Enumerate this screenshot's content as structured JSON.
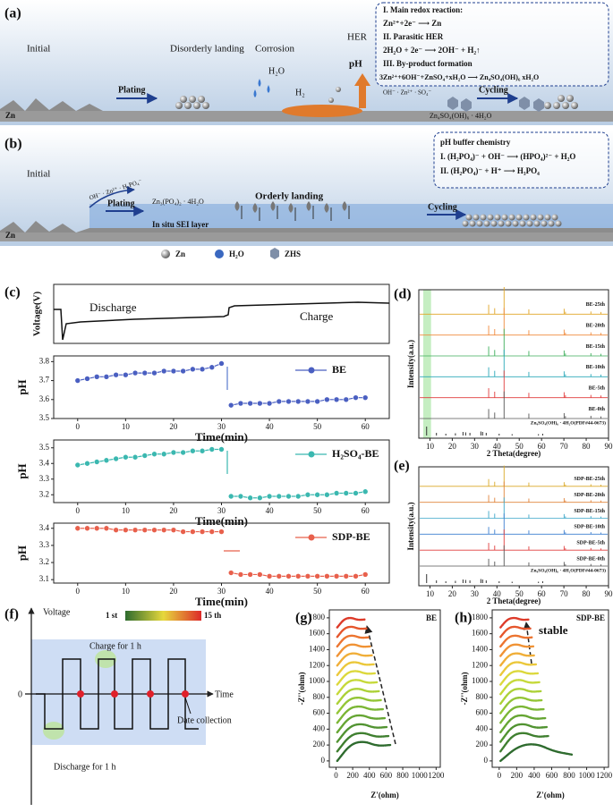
{
  "panel_a": {
    "label": "(a)",
    "stages": [
      "Initial",
      "Disorderly landing",
      "Corrosion",
      "HER"
    ],
    "species": [
      "H₂O",
      "H₂",
      "pH",
      "OH⁻ · Zn²⁺ · SO₄⁻"
    ],
    "arrows": [
      "Plating",
      "Cycling"
    ],
    "substrate": "Zn",
    "byproduct": "Zn₄SO₄(OH)₆ · 4H₂O",
    "box": [
      "I. Main redox reaction:",
      "Zn²⁺+2e⁻ ⟶ Zn",
      "II. Parasitic  HER",
      "2H₂O + 2e⁻ ⟶ 2OH⁻ + H₂↑",
      "III. By-product formation",
      "3Zn²⁺+6OH⁻+ZnSO₄+xH₂O ⟶ Zn₄SO₄(OH)₆ xH₂O"
    ]
  },
  "panel_b": {
    "label": "(b)",
    "stages": [
      "Initial",
      "Orderly landing"
    ],
    "arrows": [
      "Plating",
      "Cycling"
    ],
    "species": "OH⁻ · Zn²⁺ · H₂PO₄⁻",
    "layer_compound": "Zn₃(PO₄)₂ · 4H₂O",
    "layer": "In situ SEI layer",
    "substrate": "Zn",
    "box": [
      "pH buffer chemistry",
      "I. (H₂PO₄)⁻ + OH⁻ ⟶ (HPO₄)²⁻ + H₂O",
      "II. (H₂PO₄)⁻ + H⁺ ⟶ H₃PO₄"
    ],
    "legend": [
      "Zn",
      "H₂O",
      "ZHS"
    ]
  },
  "panel_c": {
    "label": "(c)",
    "voltage_label": "Voltage(V)",
    "phases": [
      "Discharge",
      "Charge"
    ]
  },
  "chart_data": [
    {
      "type": "line",
      "xlabel": "Time(min)",
      "ylabel": "pH",
      "x": [
        0,
        2,
        4,
        6,
        8,
        10,
        12,
        14,
        16,
        18,
        20,
        22,
        24,
        26,
        28,
        30,
        31,
        32,
        34,
        36,
        38,
        40,
        42,
        44,
        46,
        48,
        50,
        52,
        54,
        56,
        58,
        60
      ],
      "xlim": [
        -5,
        65
      ],
      "xticks": [
        0,
        10,
        20,
        30,
        40,
        50,
        60
      ],
      "ylim": [
        3.5,
        3.83
      ],
      "yticks": [
        3.5,
        3.6,
        3.7,
        3.8
      ],
      "series": [
        {
          "name": "BE",
          "color": "#4a5fc1",
          "values": [
            3.7,
            3.71,
            3.72,
            3.72,
            3.73,
            3.73,
            3.74,
            3.74,
            3.74,
            3.75,
            3.75,
            3.75,
            3.76,
            3.76,
            3.77,
            3.79,
            null,
            3.57,
            3.58,
            3.58,
            3.58,
            3.58,
            3.59,
            3.59,
            3.59,
            3.59,
            3.59,
            3.6,
            3.6,
            3.6,
            3.61,
            3.61
          ]
        }
      ]
    },
    {
      "type": "line",
      "xlabel": "Time(min)",
      "ylabel": "pH",
      "x": [
        0,
        2,
        4,
        6,
        8,
        10,
        12,
        14,
        16,
        18,
        20,
        22,
        24,
        26,
        28,
        30,
        31,
        32,
        34,
        36,
        38,
        40,
        42,
        44,
        46,
        48,
        50,
        52,
        54,
        56,
        58,
        60
      ],
      "xlim": [
        -5,
        65
      ],
      "xticks": [
        0,
        10,
        20,
        30,
        40,
        50,
        60
      ],
      "ylim": [
        3.15,
        3.55
      ],
      "yticks": [
        3.2,
        3.3,
        3.4,
        3.5
      ],
      "series": [
        {
          "name": "H₂SO₄-BE",
          "color": "#3bb8b0",
          "values": [
            3.39,
            3.4,
            3.41,
            3.42,
            3.43,
            3.44,
            3.44,
            3.45,
            3.46,
            3.46,
            3.47,
            3.47,
            3.48,
            3.48,
            3.49,
            3.49,
            null,
            3.19,
            3.19,
            3.18,
            3.18,
            3.19,
            3.19,
            3.19,
            3.19,
            3.2,
            3.2,
            3.2,
            3.21,
            3.21,
            3.21,
            3.22
          ]
        }
      ]
    },
    {
      "type": "line",
      "xlabel": "Time(min)",
      "ylabel": "pH",
      "x": [
        0,
        2,
        4,
        6,
        8,
        10,
        12,
        14,
        16,
        18,
        20,
        22,
        24,
        26,
        28,
        30,
        31,
        32,
        34,
        36,
        38,
        40,
        42,
        44,
        46,
        48,
        50,
        52,
        54,
        56,
        58,
        60
      ],
      "xlim": [
        -5,
        65
      ],
      "xticks": [
        0,
        10,
        20,
        30,
        40,
        50,
        60
      ],
      "ylim": [
        3.08,
        3.43
      ],
      "yticks": [
        3.1,
        3.2,
        3.3,
        3.4
      ],
      "series": [
        {
          "name": "SDP-BE",
          "color": "#e8604c",
          "values": [
            3.4,
            3.4,
            3.4,
            3.4,
            3.39,
            3.39,
            3.39,
            3.39,
            3.39,
            3.39,
            3.39,
            3.38,
            3.38,
            3.38,
            3.38,
            3.38,
            null,
            3.14,
            3.13,
            3.13,
            3.13,
            3.12,
            3.12,
            3.12,
            3.12,
            3.12,
            3.12,
            3.12,
            3.12,
            3.12,
            3.12,
            3.13
          ]
        }
      ]
    },
    {
      "type": "xrd",
      "panel": "(d)",
      "xlabel": "2 Theta(degree)",
      "ylabel": "Intensity(a.u.)",
      "xlim": [
        5,
        90
      ],
      "xticks": [
        10,
        20,
        30,
        40,
        50,
        60,
        70,
        80,
        90
      ],
      "highlight": [
        7,
        10.5
      ],
      "peaks": [
        36.3,
        39.0,
        43.2,
        54.3,
        70.1,
        70.7,
        82.1,
        86.6
      ],
      "peak_heights": [
        35,
        22,
        100,
        18,
        20,
        9,
        10,
        8
      ],
      "series": [
        {
          "name": "BE-25th",
          "color": "#e0a526"
        },
        {
          "name": "BE-20th",
          "color": "#f08a3c"
        },
        {
          "name": "BE-15th",
          "color": "#3cae5a"
        },
        {
          "name": "BE-10th",
          "color": "#2aa7b8"
        },
        {
          "name": "BE-5th",
          "color": "#e03c3c"
        },
        {
          "name": "BE-0th",
          "color": "#555555"
        }
      ],
      "reference": {
        "name": "Zn₄SO₄(OH)₆ · 4H₂O(PDF#44-0673)",
        "positions": [
          8.5,
          12.9,
          17.1,
          21.4,
          24.8,
          26.0,
          27.9,
          32.8,
          33.6,
          35.2,
          41.0,
          46.8,
          58.6,
          60.5
        ],
        "heights": [
          100,
          30,
          20,
          25,
          40,
          35,
          30,
          45,
          40,
          30,
          20,
          15,
          15,
          20
        ]
      }
    },
    {
      "type": "xrd",
      "panel": "(e)",
      "xlabel": "2 Theta(degree)",
      "ylabel": "Intensity(a.u.)",
      "xlim": [
        5,
        90
      ],
      "xticks": [
        10,
        20,
        30,
        40,
        50,
        60,
        70,
        80,
        90
      ],
      "peaks": [
        36.3,
        39.0,
        43.2,
        54.3,
        70.1,
        70.7,
        82.1,
        86.6
      ],
      "peak_heights": [
        35,
        22,
        100,
        18,
        20,
        9,
        10,
        8
      ],
      "series": [
        {
          "name": "SDP-BE-25th",
          "color": "#d9a826"
        },
        {
          "name": "SDP-BE-20th",
          "color": "#e0833a"
        },
        {
          "name": "SDP-BE-15th",
          "color": "#3aa6c8"
        },
        {
          "name": "SDP-BE-10th",
          "color": "#3c7fd0"
        },
        {
          "name": "SDP-BE-5th",
          "color": "#e03c3c"
        },
        {
          "name": "SDP-BE-0th",
          "color": "#555555"
        }
      ],
      "reference": {
        "name": "Zn₄SO₄(OH)₆ · 4H₂O(PDF#44-0673)",
        "positions": [
          8.5,
          12.9,
          17.1,
          21.4,
          24.8,
          26.0,
          27.9,
          32.8,
          33.6,
          35.2,
          41.0,
          46.8,
          58.6,
          60.5
        ],
        "heights": [
          100,
          30,
          20,
          25,
          40,
          35,
          30,
          45,
          40,
          30,
          20,
          15,
          15,
          20
        ]
      }
    },
    {
      "type": "nyquist",
      "panel": "(g)",
      "xlabel": "Z'(ohm)",
      "ylabel": "-Z''(ohm)",
      "xlim": [
        -80,
        1250
      ],
      "ylim": [
        -80,
        1900
      ],
      "xticks": [
        0,
        200,
        400,
        600,
        800,
        1000,
        1200
      ],
      "yticks": [
        0,
        200,
        400,
        600,
        800,
        1000,
        1200,
        1400,
        1600,
        1800
      ],
      "annotations": [
        "BE"
      ],
      "series": [
        {
          "color": "#2e6b2e",
          "x": [
            15,
            174,
            333,
            491,
            650
          ],
          "values": [
            0,
            212,
            250,
            188,
            200
          ]
        },
        {
          "color": "#3f7f2f",
          "x": [
            15,
            168,
            322,
            475,
            628
          ],
          "values": [
            120,
            325,
            361,
            301,
            313
          ]
        },
        {
          "color": "#519331",
          "x": [
            15,
            163,
            311,
            458,
            606
          ],
          "values": [
            240,
            437,
            472,
            414,
            426
          ]
        },
        {
          "color": "#65a532",
          "x": [
            15,
            157,
            300,
            442,
            584
          ],
          "values": [
            360,
            550,
            583,
            527,
            538
          ]
        },
        {
          "color": "#7bb634",
          "x": [
            15,
            152,
            289,
            425,
            562
          ],
          "values": [
            480,
            662,
            694,
            641,
            651
          ]
        },
        {
          "color": "#93c535",
          "x": [
            15,
            146,
            278,
            409,
            540
          ],
          "values": [
            600,
            774,
            805,
            754,
            764
          ]
        },
        {
          "color": "#acd137",
          "x": [
            15,
            141,
            267,
            392,
            518
          ],
          "values": [
            720,
            887,
            916,
            867,
            877
          ]
        },
        {
          "color": "#c6d93a",
          "x": [
            15,
            135,
            256,
            376,
            496
          ],
          "values": [
            840,
            999,
            1027,
            980,
            990
          ]
        },
        {
          "color": "#dcd83c",
          "x": [
            15,
            130,
            245,
            359,
            474
          ],
          "values": [
            960,
            1111,
            1138,
            1094,
            1102
          ]
        },
        {
          "color": "#ebc83b",
          "x": [
            15,
            124,
            234,
            343,
            452
          ],
          "values": [
            1080,
            1224,
            1249,
            1207,
            1215
          ]
        },
        {
          "color": "#f0ae38",
          "x": [
            15,
            119,
            223,
            326,
            430
          ],
          "values": [
            1200,
            1336,
            1360,
            1320,
            1328
          ]
        },
        {
          "color": "#f09234",
          "x": [
            15,
            113,
            212,
            310,
            408
          ],
          "values": [
            1320,
            1448,
            1471,
            1433,
            1441
          ]
        },
        {
          "color": "#ec7430",
          "x": [
            15,
            108,
            201,
            293,
            386
          ],
          "values": [
            1440,
            1561,
            1582,
            1547,
            1554
          ]
        },
        {
          "color": "#e5562c",
          "x": [
            15,
            102,
            190,
            277,
            364
          ],
          "values": [
            1560,
            1673,
            1693,
            1660,
            1666
          ]
        },
        {
          "color": "#dd3a29",
          "x": [
            15,
            97,
            179,
            260,
            342
          ],
          "values": [
            1680,
            1785,
            1804,
            1773,
            1779
          ]
        }
      ]
    },
    {
      "type": "nyquist",
      "panel": "(h)",
      "xlabel": "Z'(ohm)",
      "ylabel": "-Z''(ohm)",
      "xlim": [
        -80,
        1250
      ],
      "ylim": [
        -80,
        1900
      ],
      "xticks": [
        0,
        200,
        400,
        600,
        800,
        1000,
        1200
      ],
      "yticks": [
        0,
        200,
        400,
        600,
        800,
        1000,
        1200,
        1400,
        1600,
        1800
      ],
      "annotations": [
        "SDP-BE",
        "stable"
      ],
      "series": [
        {
          "color": "#2e6b2e",
          "x": [
            15,
            219,
            423,
            626,
            830
          ],
          "values": [
            0,
            190,
            220,
            120,
            80
          ]
        },
        {
          "color": "#3f7f2f",
          "x": [
            15,
            151,
            288,
            424,
            560
          ],
          "values": [
            120,
            325,
            361,
            301,
            313
          ]
        },
        {
          "color": "#519331",
          "x": [
            15,
            147,
            279,
            411,
            543
          ],
          "values": [
            240,
            437,
            472,
            414,
            426
          ]
        },
        {
          "color": "#65a532",
          "x": [
            15,
            143,
            271,
            398,
            526
          ],
          "values": [
            360,
            550,
            583,
            527,
            538
          ]
        },
        {
          "color": "#7bb634",
          "x": [
            15,
            139,
            262,
            386,
            509
          ],
          "values": [
            480,
            662,
            694,
            641,
            651
          ]
        },
        {
          "color": "#93c535",
          "x": [
            15,
            134,
            254,
            373,
            492
          ],
          "values": [
            600,
            774,
            805,
            754,
            764
          ]
        },
        {
          "color": "#acd137",
          "x": [
            15,
            130,
            245,
            360,
            475
          ],
          "values": [
            720,
            887,
            916,
            867,
            877
          ]
        },
        {
          "color": "#c6d93a",
          "x": [
            15,
            126,
            237,
            347,
            458
          ],
          "values": [
            840,
            999,
            1027,
            980,
            990
          ]
        },
        {
          "color": "#dcd83c",
          "x": [
            15,
            122,
            228,
            335,
            441
          ],
          "values": [
            960,
            1111,
            1138,
            1094,
            1102
          ]
        },
        {
          "color": "#ebc83b",
          "x": [
            15,
            117,
            220,
            322,
            424
          ],
          "values": [
            1080,
            1224,
            1249,
            1207,
            1215
          ]
        },
        {
          "color": "#f0ae38",
          "x": [
            15,
            113,
            211,
            309,
            407
          ],
          "values": [
            1200,
            1336,
            1360,
            1320,
            1328
          ]
        },
        {
          "color": "#f09234",
          "x": [
            15,
            109,
            203,
            296,
            390
          ],
          "values": [
            1320,
            1448,
            1471,
            1433,
            1441
          ]
        },
        {
          "color": "#ec7430",
          "x": [
            15,
            105,
            194,
            284,
            373
          ],
          "values": [
            1440,
            1561,
            1582,
            1547,
            1554
          ]
        },
        {
          "color": "#e5562c",
          "x": [
            15,
            100,
            186,
            271,
            356
          ],
          "values": [
            1560,
            1673,
            1693,
            1660,
            1666
          ]
        },
        {
          "color": "#dd3a29",
          "x": [
            15,
            96,
            177,
            258,
            339
          ],
          "values": [
            1680,
            1785,
            1804,
            1773,
            1779
          ]
        }
      ]
    }
  ],
  "panel_f": {
    "label": "(f)",
    "y_axis": "Voltage",
    "x_axis": "Time",
    "zero": "0",
    "notes": [
      "Charge for 1 h",
      "Discharge for 1 h",
      "Date collection"
    ],
    "colorbar": [
      "1 st",
      "15 th"
    ]
  }
}
